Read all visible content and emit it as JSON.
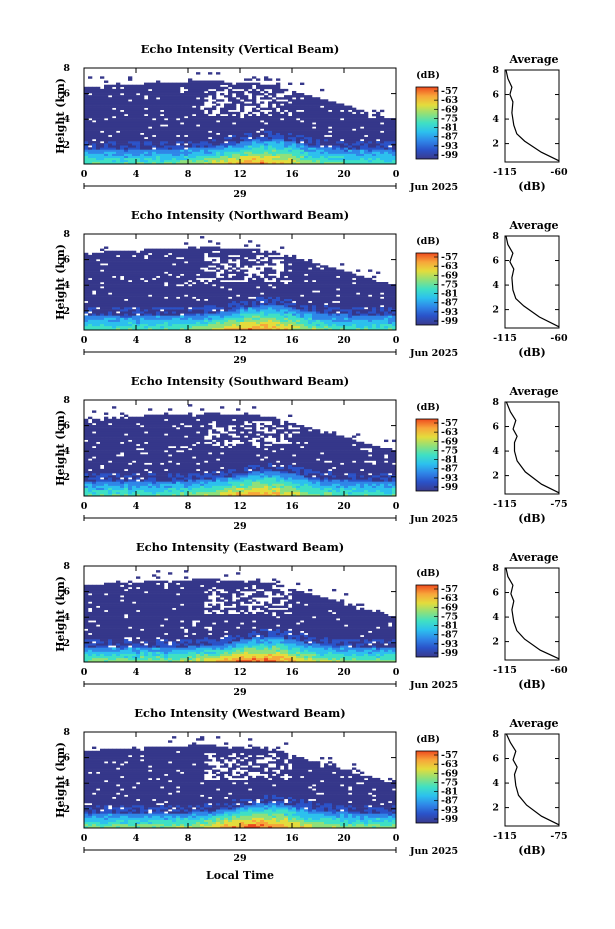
{
  "figure": {
    "x_axis_label": "Local Time",
    "colorbar_unit": "(dB)",
    "colorbar_ticks": [
      "-57",
      "-63",
      "-69",
      "-75",
      "-81",
      "-87",
      "-93",
      "-99"
    ],
    "colormap": [
      "#3a3a8c",
      "#2a52c8",
      "#2f86e8",
      "#2cc0ee",
      "#3fe0c4",
      "#8fe07a",
      "#e4dc3c",
      "#f7a63a",
      "#ee4a1e"
    ],
    "background_fill": "#35378a",
    "date_label": "Jun 2025",
    "day_label": "29",
    "average_title": "Average",
    "average_unit": "(dB)"
  },
  "chart_data": [
    {
      "type": "heatmap",
      "title": "Echo Intensity (Vertical Beam)",
      "ylabel": "Height (km)",
      "x_ticks": [
        "0",
        "4",
        "8",
        "12",
        "16",
        "20",
        "0"
      ],
      "y_ticks": [
        "2",
        "4",
        "6",
        "8"
      ],
      "xlim": [
        0,
        24
      ],
      "ylim": [
        0.5,
        8
      ],
      "profile": {
        "type": "line",
        "title": "Average",
        "xlabel": "(dB)",
        "x_ticks": [
          "-115",
          "-60"
        ],
        "xlim": [
          -115,
          -60
        ],
        "y_ticks": [
          "2",
          "4",
          "6",
          "8"
        ],
        "ylim": [
          0.5,
          8
        ],
        "points": [
          [
            -60,
            0.6
          ],
          [
            -78,
            1.3
          ],
          [
            -95,
            2.2
          ],
          [
            -103,
            2.8
          ],
          [
            -106,
            3.5
          ],
          [
            -108,
            4.5
          ],
          [
            -107,
            5.4
          ],
          [
            -110,
            6.0
          ],
          [
            -108,
            6.6
          ],
          [
            -112,
            7.3
          ],
          [
            -114,
            8.0
          ]
        ]
      }
    },
    {
      "type": "heatmap",
      "title": "Echo Intensity (Northward Beam)",
      "ylabel": "Height (km)",
      "x_ticks": [
        "0",
        "4",
        "8",
        "12",
        "16",
        "20",
        "0"
      ],
      "y_ticks": [
        "2",
        "4",
        "6",
        "8"
      ],
      "xlim": [
        0,
        24
      ],
      "ylim": [
        0.5,
        8
      ],
      "profile": {
        "type": "line",
        "title": "Average",
        "xlabel": "(dB)",
        "x_ticks": [
          "-115",
          "-60"
        ],
        "xlim": [
          -115,
          -60
        ],
        "y_ticks": [
          "2",
          "4",
          "6",
          "8"
        ],
        "ylim": [
          0.5,
          8
        ],
        "points": [
          [
            -60,
            0.6
          ],
          [
            -80,
            1.4
          ],
          [
            -96,
            2.3
          ],
          [
            -104,
            2.9
          ],
          [
            -107,
            3.6
          ],
          [
            -108,
            4.6
          ],
          [
            -106,
            5.3
          ],
          [
            -110,
            5.9
          ],
          [
            -107,
            6.6
          ],
          [
            -112,
            7.3
          ],
          [
            -114,
            8.0
          ]
        ]
      }
    },
    {
      "type": "heatmap",
      "title": "Echo Intensity (Southward Beam)",
      "ylabel": "Height (km)",
      "x_ticks": [
        "0",
        "4",
        "8",
        "12",
        "16",
        "20",
        "0"
      ],
      "y_ticks": [
        "2",
        "4",
        "6",
        "8"
      ],
      "xlim": [
        0,
        24
      ],
      "ylim": [
        0.5,
        8
      ],
      "profile": {
        "type": "line",
        "title": "Average",
        "xlabel": "(dB)",
        "x_ticks": [
          "-115",
          "-75"
        ],
        "xlim": [
          -115,
          -75
        ],
        "y_ticks": [
          "2",
          "4",
          "6",
          "8"
        ],
        "ylim": [
          0.5,
          8
        ],
        "points": [
          [
            -75,
            0.6
          ],
          [
            -88,
            1.3
          ],
          [
            -100,
            2.3
          ],
          [
            -106,
            3.2
          ],
          [
            -108,
            4.0
          ],
          [
            -108,
            4.7
          ],
          [
            -106,
            5.2
          ],
          [
            -109,
            5.8
          ],
          [
            -107,
            6.5
          ],
          [
            -111,
            7.2
          ],
          [
            -114,
            8.0
          ]
        ]
      }
    },
    {
      "type": "heatmap",
      "title": "Echo Intensity (Eastward Beam)",
      "ylabel": "Height (km)",
      "x_ticks": [
        "0",
        "4",
        "8",
        "12",
        "16",
        "20",
        "0"
      ],
      "y_ticks": [
        "2",
        "4",
        "6",
        "8"
      ],
      "xlim": [
        0,
        24
      ],
      "ylim": [
        0.5,
        8
      ],
      "profile": {
        "type": "line",
        "title": "Average",
        "xlabel": "(dB)",
        "x_ticks": [
          "-115",
          "-60"
        ],
        "xlim": [
          -115,
          -60
        ],
        "y_ticks": [
          "2",
          "4",
          "6",
          "8"
        ],
        "ylim": [
          0.5,
          8
        ],
        "points": [
          [
            -60,
            0.6
          ],
          [
            -79,
            1.3
          ],
          [
            -95,
            2.2
          ],
          [
            -103,
            2.9
          ],
          [
            -106,
            3.6
          ],
          [
            -108,
            4.6
          ],
          [
            -106,
            5.3
          ],
          [
            -109,
            5.9
          ],
          [
            -107,
            6.6
          ],
          [
            -112,
            7.3
          ],
          [
            -114,
            8.0
          ]
        ]
      }
    },
    {
      "type": "heatmap",
      "title": "Echo Intensity (Westward Beam)",
      "ylabel": "Height (km)",
      "x_ticks": [
        "0",
        "4",
        "8",
        "12",
        "16",
        "20",
        "0"
      ],
      "y_ticks": [
        "2",
        "4",
        "6",
        "8"
      ],
      "xlim": [
        0,
        24
      ],
      "ylim": [
        0.5,
        8
      ],
      "profile": {
        "type": "line",
        "title": "Average",
        "xlabel": "(dB)",
        "x_ticks": [
          "-115",
          "-75"
        ],
        "xlim": [
          -115,
          -75
        ],
        "y_ticks": [
          "2",
          "4",
          "6",
          "8"
        ],
        "ylim": [
          0.5,
          8
        ],
        "points": [
          [
            -75,
            0.6
          ],
          [
            -88,
            1.3
          ],
          [
            -99,
            2.2
          ],
          [
            -105,
            3.0
          ],
          [
            -107,
            3.8
          ],
          [
            -108,
            4.7
          ],
          [
            -106,
            5.3
          ],
          [
            -109,
            5.9
          ],
          [
            -107,
            6.6
          ],
          [
            -111,
            7.3
          ],
          [
            -114,
            8.0
          ]
        ]
      }
    }
  ]
}
